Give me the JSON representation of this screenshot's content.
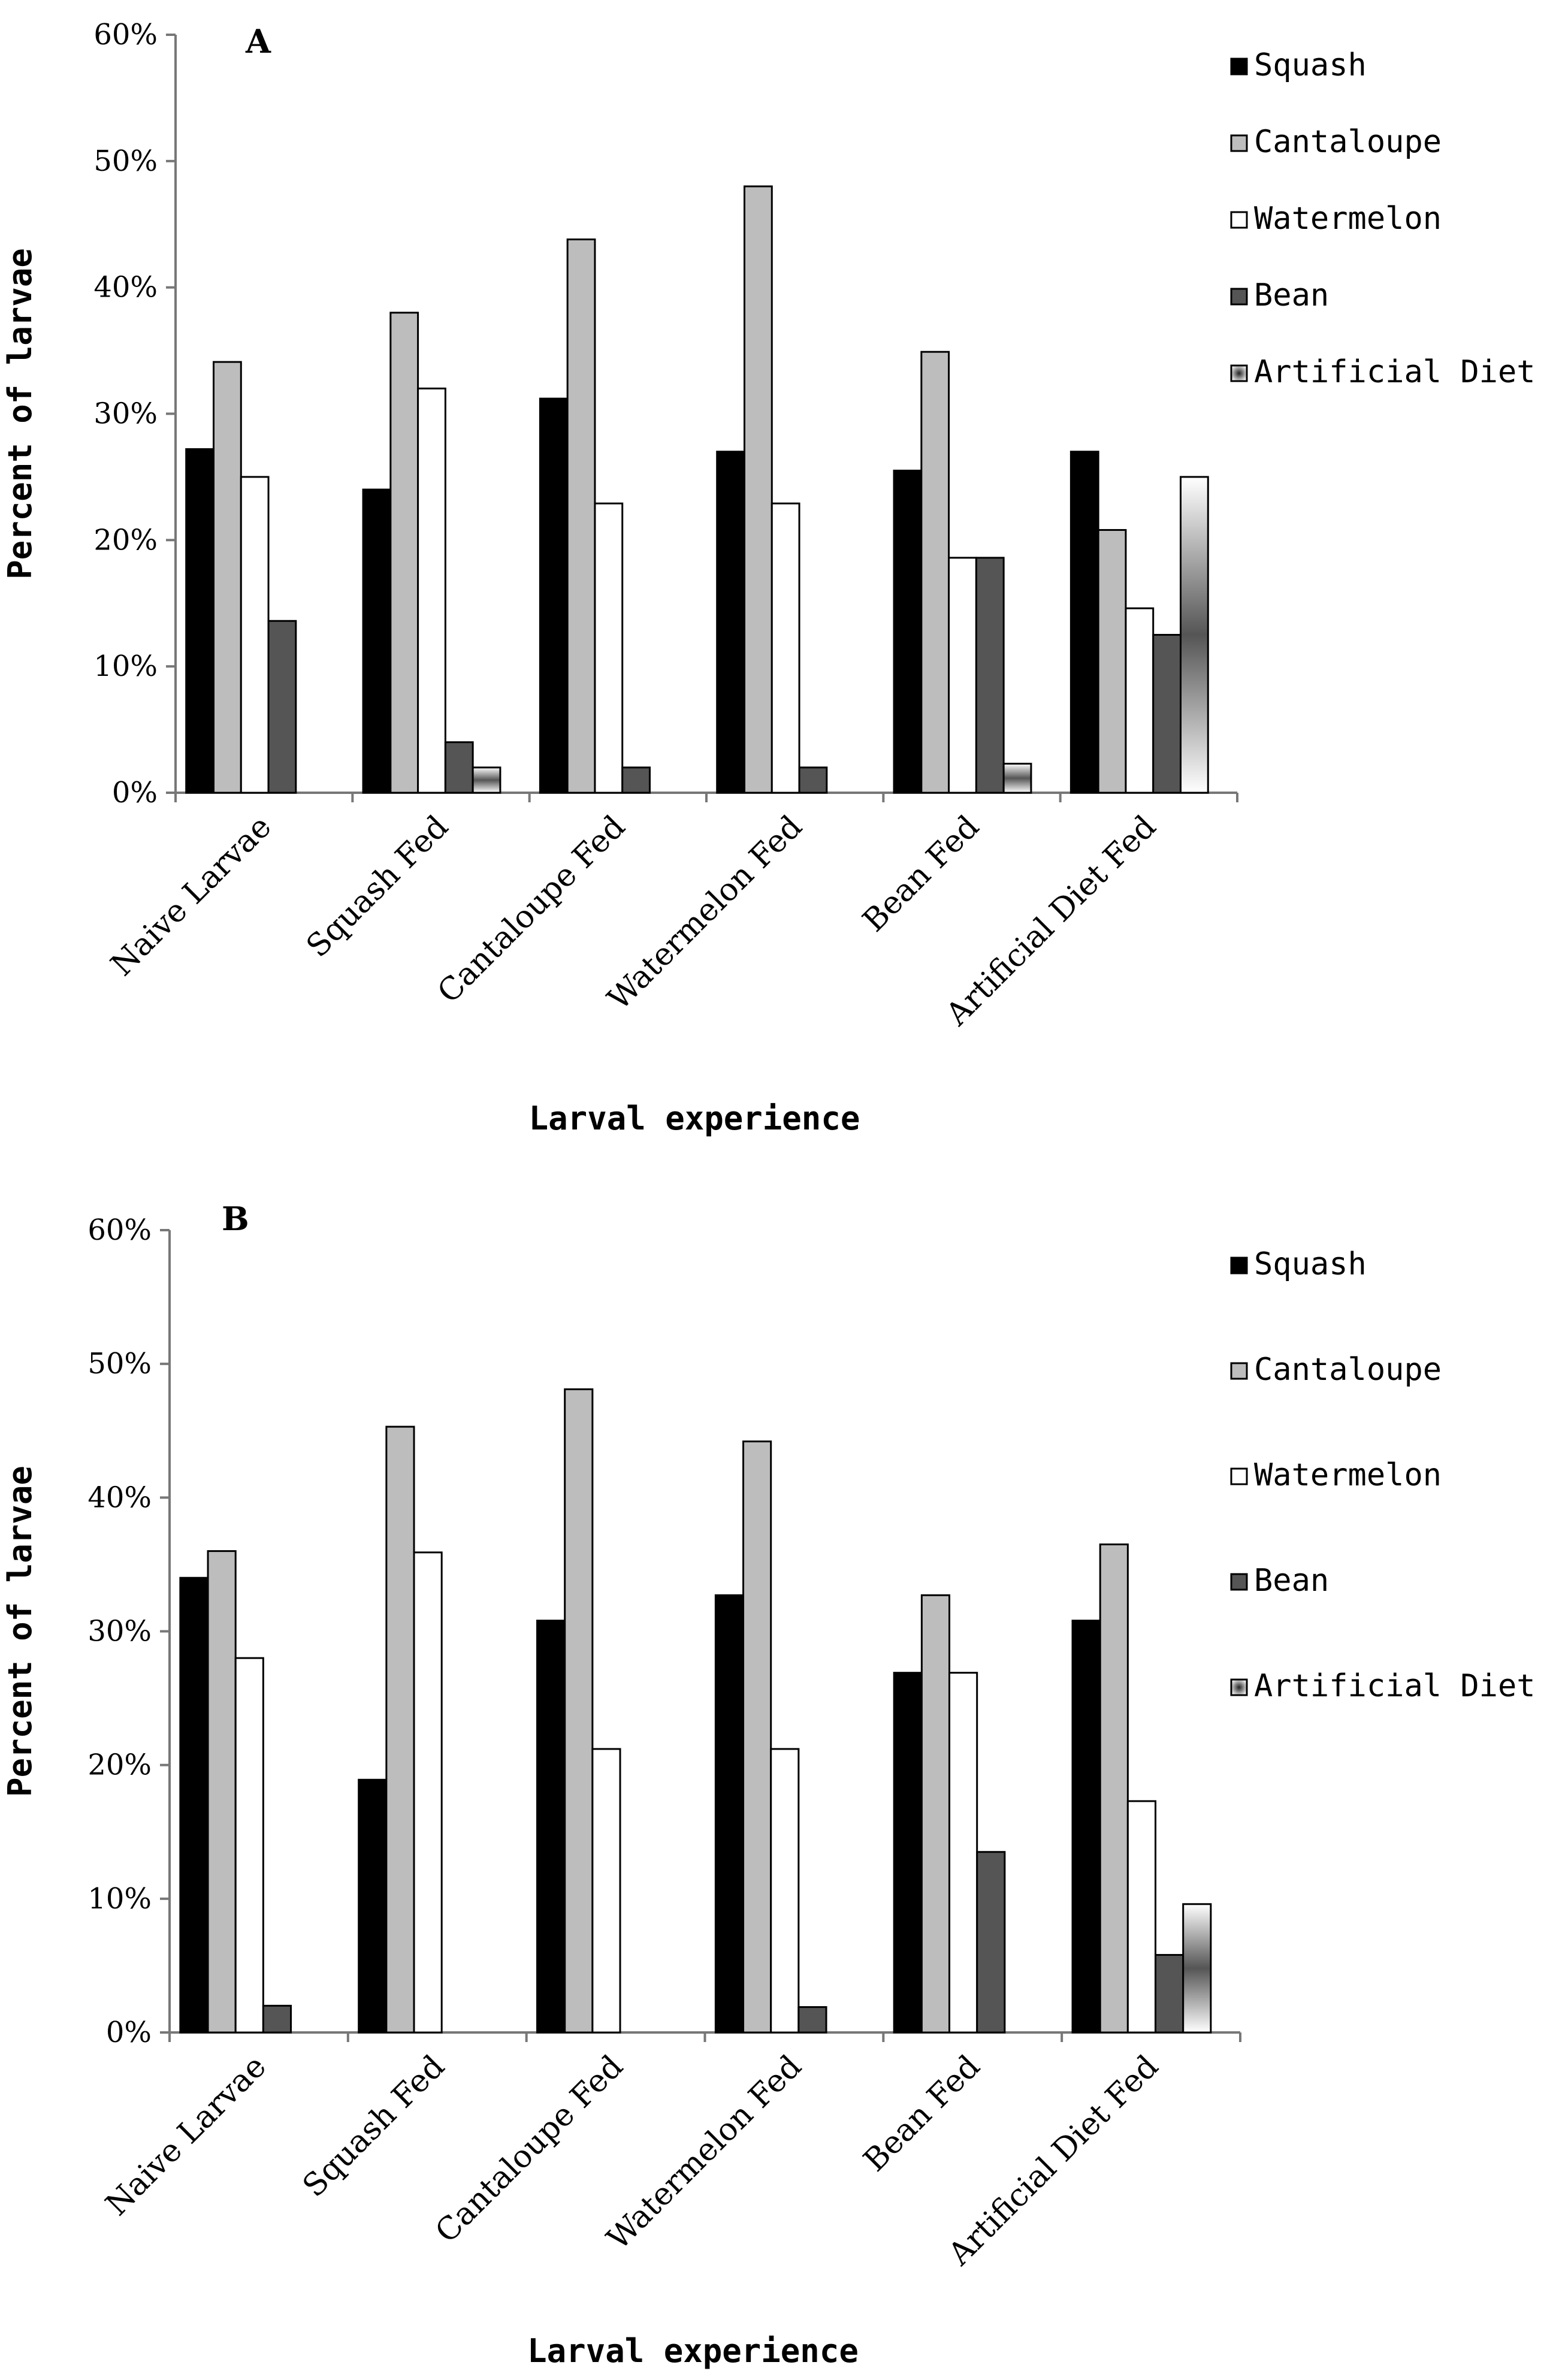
{
  "chart_data": [
    {
      "type": "bar",
      "panel": "A",
      "title": "",
      "xlabel": "Larval experience",
      "ylabel": "Percent of larvae",
      "ylim": [
        0,
        60
      ],
      "yticks": [
        "0%",
        "10%",
        "20%",
        "30%",
        "40%",
        "50%",
        "60%"
      ],
      "categories": [
        "Naive Larvae",
        "Squash Fed",
        "Cantaloupe Fed",
        "Watermelon Fed",
        "Bean Fed",
        "Artificial Diet Fed"
      ],
      "legend_position": "right",
      "series": [
        {
          "name": "Squash",
          "values": [
            27.2,
            24,
            31.2,
            27,
            25.5,
            27
          ]
        },
        {
          "name": "Cantaloupe",
          "values": [
            34.1,
            38,
            43.8,
            48,
            34.9,
            20.8
          ]
        },
        {
          "name": "Watermelon",
          "values": [
            25,
            32,
            22.9,
            22.9,
            18.6,
            14.6
          ]
        },
        {
          "name": "Bean",
          "values": [
            13.6,
            4,
            2,
            2,
            18.6,
            12.5
          ]
        },
        {
          "name": "Artificial Diet",
          "values": [
            0,
            2,
            0,
            0,
            2.3,
            25
          ]
        }
      ]
    },
    {
      "type": "bar",
      "panel": "B",
      "title": "",
      "xlabel": "Larval experience",
      "ylabel": "Percent of larvae",
      "ylim": [
        0,
        60
      ],
      "yticks": [
        "0%",
        "10%",
        "20%",
        "30%",
        "40%",
        "50%",
        "60%"
      ],
      "categories": [
        "Naive Larvae",
        "Squash Fed",
        "Cantaloupe Fed",
        "Watermelon Fed",
        "Bean Fed",
        "Artificial Diet Fed"
      ],
      "legend_position": "right",
      "series": [
        {
          "name": "Squash",
          "values": [
            34,
            18.9,
            30.8,
            32.7,
            26.9,
            30.8
          ]
        },
        {
          "name": "Cantaloupe",
          "values": [
            36,
            45.3,
            48.1,
            44.2,
            32.7,
            36.5
          ]
        },
        {
          "name": "Watermelon",
          "values": [
            28,
            35.9,
            21.2,
            21.2,
            26.9,
            17.3
          ]
        },
        {
          "name": "Bean",
          "values": [
            2,
            0,
            0,
            1.9,
            13.5,
            5.8
          ]
        },
        {
          "name": "Artificial Diet",
          "values": [
            0,
            0,
            0,
            0,
            0,
            9.6
          ]
        }
      ]
    }
  ],
  "colors": {
    "Squash": "#000000",
    "Cantaloupe": "#bdbdbd",
    "Watermelon": "#ffffff",
    "Bean": "#555555",
    "Artificial Diet": "gradient"
  }
}
